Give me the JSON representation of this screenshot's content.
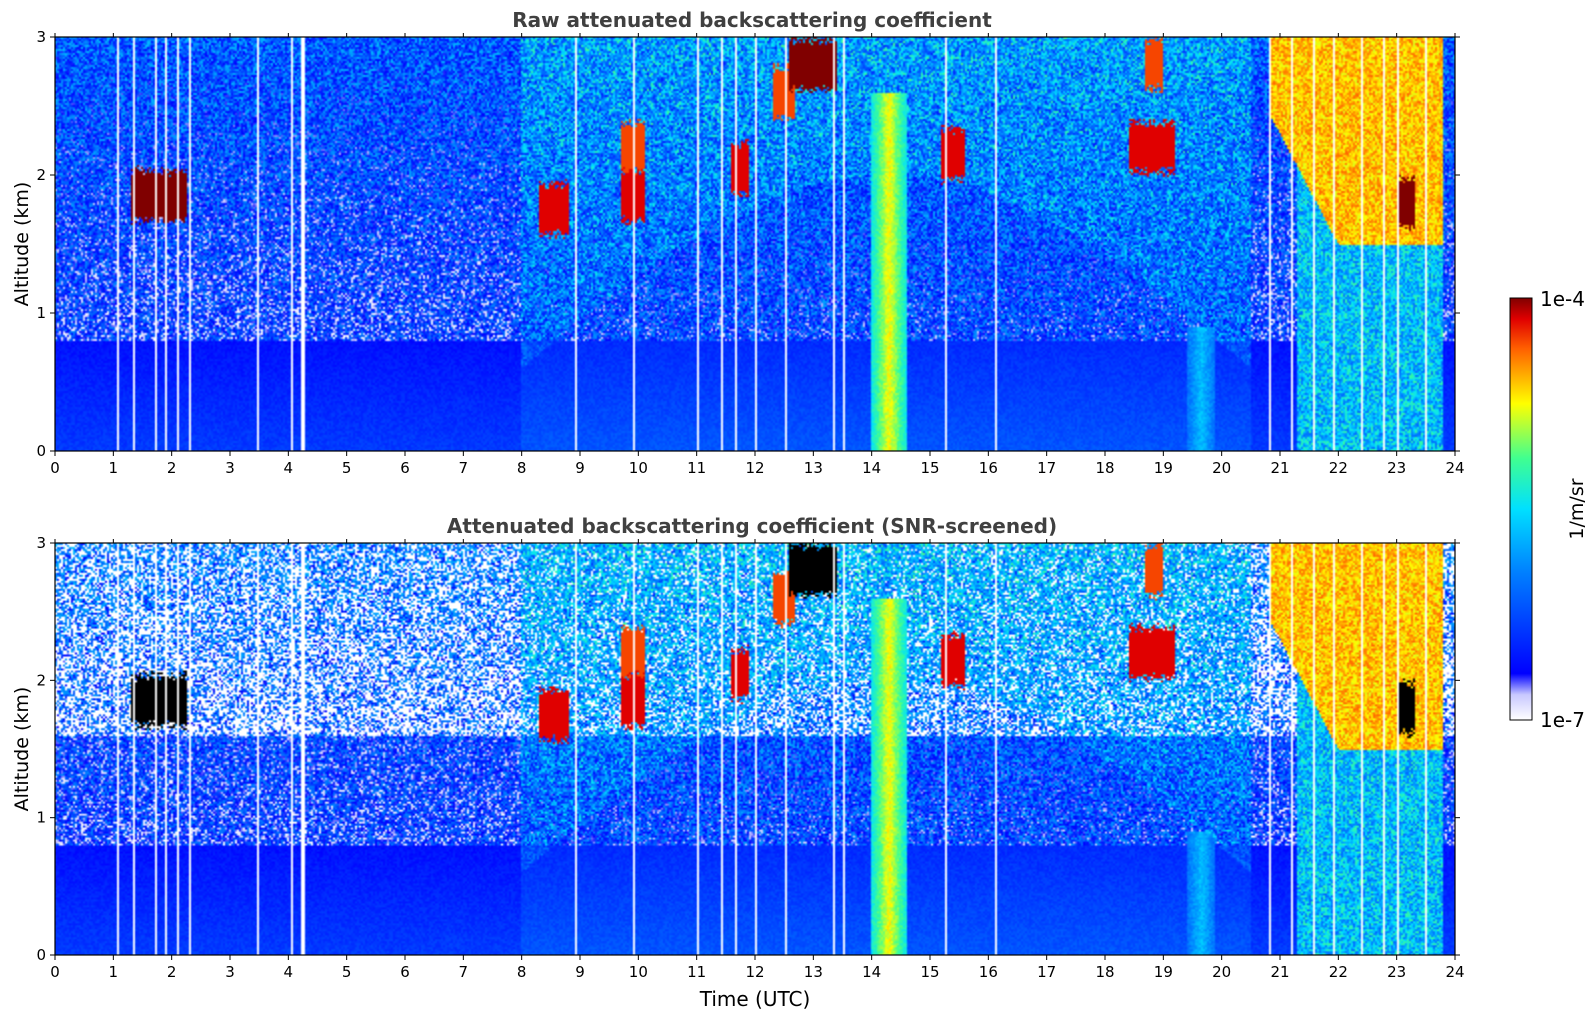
{
  "chart_data": [
    {
      "type": "heatmap",
      "title": "Raw attenuated backscattering coefficient",
      "xlabel": "",
      "ylabel": "Altitude (km)",
      "xlim": [
        0,
        24
      ],
      "ylim": [
        0,
        3
      ],
      "xticks": [
        "0",
        "1",
        "2",
        "3",
        "4",
        "5",
        "6",
        "7",
        "8",
        "9",
        "10",
        "11",
        "12",
        "13",
        "14",
        "15",
        "16",
        "17",
        "18",
        "19",
        "20",
        "21",
        "22",
        "23",
        "24"
      ],
      "yticks": [
        "0",
        "1",
        "2",
        "3"
      ],
      "colorscale": "jet (log)",
      "screened": false
    },
    {
      "type": "heatmap",
      "title": "Attenuated backscattering coefficient (SNR-screened)",
      "xlabel": "Time (UTC)",
      "ylabel": "Altitude (km)",
      "xlim": [
        0,
        24
      ],
      "ylim": [
        0,
        3
      ],
      "xticks": [
        "0",
        "1",
        "2",
        "3",
        "4",
        "5",
        "6",
        "7",
        "8",
        "9",
        "10",
        "11",
        "12",
        "13",
        "14",
        "15",
        "16",
        "17",
        "18",
        "19",
        "20",
        "21",
        "22",
        "23",
        "24"
      ],
      "yticks": [
        "0",
        "1",
        "2",
        "3"
      ],
      "colorscale": "jet (log)",
      "screened": true
    }
  ],
  "colorbar": {
    "label": "1/m/sr",
    "max_label": "1e-4",
    "min_label": "1e-7",
    "range": [
      1e-07,
      0.0001
    ]
  },
  "features": {
    "aerosol_layer_top_km": 0.8,
    "clouds": [
      {
        "t0": 1.3,
        "t1": 2.25,
        "alt": 1.85,
        "intensity": 1.0
      },
      {
        "t0": 8.3,
        "t1": 8.8,
        "alt": 1.75,
        "intensity": 0.95
      },
      {
        "t0": 9.7,
        "t1": 10.1,
        "alt": 1.85,
        "intensity": 0.95
      },
      {
        "t0": 9.7,
        "t1": 10.1,
        "alt": 2.2,
        "intensity": 0.9
      },
      {
        "t0": 11.6,
        "t1": 11.9,
        "alt": 2.05,
        "intensity": 0.95
      },
      {
        "t0": 12.3,
        "t1": 12.7,
        "alt": 2.6,
        "intensity": 0.9
      },
      {
        "t0": 12.6,
        "t1": 13.4,
        "alt": 2.8,
        "intensity": 1.0
      },
      {
        "t0": 15.2,
        "t1": 15.6,
        "alt": 2.15,
        "intensity": 0.95
      },
      {
        "t0": 18.4,
        "t1": 19.2,
        "alt": 2.2,
        "intensity": 0.95
      },
      {
        "t0": 18.7,
        "t1": 19.0,
        "alt": 2.8,
        "intensity": 0.9
      },
      {
        "t0": 23.0,
        "t1": 23.3,
        "alt": 1.8,
        "intensity": 1.0
      }
    ],
    "precip_columns": [
      {
        "t0": 14.0,
        "t1": 14.6,
        "top": 2.6,
        "intensity": 0.75
      },
      {
        "t0": 19.4,
        "t1": 19.9,
        "top": 0.9,
        "intensity": 0.45
      }
    ],
    "thick_cloud": {
      "t0": 20.8,
      "t1": 23.8,
      "base_km": 1.5,
      "top_km": 3.0,
      "intensity": 0.8
    },
    "gap_times": [
      1.05,
      1.35,
      1.7,
      1.9,
      2.1,
      2.3,
      3.45,
      4.05,
      4.2,
      4.25,
      8.9,
      9.9,
      11.0,
      11.4,
      11.65,
      12.0,
      12.5,
      13.35,
      13.5,
      15.25,
      16.1,
      20.8,
      21.2,
      21.55,
      21.9,
      22.4,
      22.75,
      23.0,
      23.5
    ]
  }
}
